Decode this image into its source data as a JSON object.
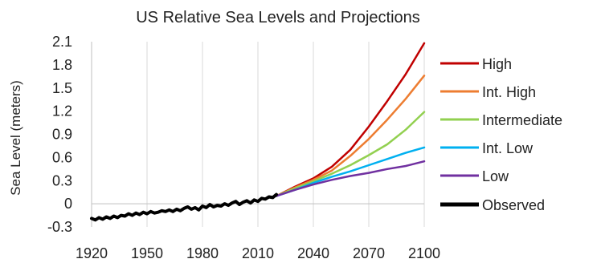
{
  "chart_data": {
    "type": "line",
    "title": "US Relative Sea Levels and Projections",
    "xlabel": "",
    "ylabel": "Sea Level (meters)",
    "xlim": [
      1920,
      2100
    ],
    "ylim": [
      -0.3,
      2.1
    ],
    "x_ticks": [
      1920,
      1950,
      1980,
      2010,
      2040,
      2070,
      2100
    ],
    "y_ticks": [
      -0.3,
      0,
      0.3,
      0.6,
      0.9,
      1.2,
      1.5,
      1.8,
      2.1
    ],
    "y_tick_labels": [
      "-0.3",
      "0",
      "0.3",
      "0.6",
      "0.9",
      "1.2",
      "1.5",
      "1.8",
      "2.1"
    ],
    "grid": "vertical",
    "legend_position": "right",
    "series": [
      {
        "name": "High",
        "color": "#c00000",
        "x": [
          2020,
          2030,
          2040,
          2050,
          2060,
          2070,
          2080,
          2090,
          2100
        ],
        "y": [
          0.1,
          0.22,
          0.33,
          0.48,
          0.7,
          1.0,
          1.33,
          1.68,
          2.08
        ]
      },
      {
        "name": "Int. High",
        "color": "#ed7d31",
        "x": [
          2020,
          2030,
          2040,
          2050,
          2060,
          2070,
          2080,
          2090,
          2100
        ],
        "y": [
          0.1,
          0.21,
          0.31,
          0.43,
          0.62,
          0.84,
          1.09,
          1.36,
          1.66
        ]
      },
      {
        "name": "Intermediate",
        "color": "#92d050",
        "x": [
          2020,
          2030,
          2040,
          2050,
          2060,
          2070,
          2080,
          2090,
          2100
        ],
        "y": [
          0.1,
          0.2,
          0.29,
          0.39,
          0.5,
          0.63,
          0.77,
          0.96,
          1.19
        ]
      },
      {
        "name": "Int. Low",
        "color": "#00b0f0",
        "x": [
          2020,
          2030,
          2040,
          2050,
          2060,
          2070,
          2080,
          2090,
          2100
        ],
        "y": [
          0.1,
          0.18,
          0.27,
          0.35,
          0.42,
          0.5,
          0.58,
          0.66,
          0.73
        ]
      },
      {
        "name": "Low",
        "color": "#7030a0",
        "x": [
          2020,
          2030,
          2040,
          2050,
          2060,
          2070,
          2080,
          2090,
          2100
        ],
        "y": [
          0.1,
          0.18,
          0.25,
          0.31,
          0.36,
          0.4,
          0.45,
          0.49,
          0.55
        ]
      },
      {
        "name": "Observed",
        "color": "#000000",
        "x": [
          1920,
          1922,
          1924,
          1926,
          1928,
          1930,
          1932,
          1934,
          1936,
          1938,
          1940,
          1942,
          1944,
          1946,
          1948,
          1950,
          1952,
          1954,
          1956,
          1958,
          1960,
          1962,
          1964,
          1966,
          1968,
          1970,
          1972,
          1974,
          1976,
          1978,
          1980,
          1982,
          1984,
          1986,
          1988,
          1990,
          1992,
          1994,
          1996,
          1998,
          2000,
          2002,
          2004,
          2006,
          2008,
          2010,
          2012,
          2014,
          2016,
          2018,
          2020
        ],
        "y": [
          -0.19,
          -0.21,
          -0.18,
          -0.2,
          -0.17,
          -0.19,
          -0.16,
          -0.18,
          -0.15,
          -0.16,
          -0.13,
          -0.15,
          -0.12,
          -0.14,
          -0.11,
          -0.13,
          -0.1,
          -0.12,
          -0.11,
          -0.09,
          -0.1,
          -0.08,
          -0.1,
          -0.07,
          -0.09,
          -0.06,
          -0.04,
          -0.07,
          -0.05,
          -0.08,
          -0.03,
          -0.05,
          -0.01,
          -0.04,
          -0.02,
          -0.03,
          0.0,
          -0.02,
          0.01,
          0.03,
          -0.01,
          0.02,
          0.04,
          0.01,
          0.05,
          0.03,
          0.07,
          0.06,
          0.09,
          0.08,
          0.12
        ]
      }
    ]
  }
}
